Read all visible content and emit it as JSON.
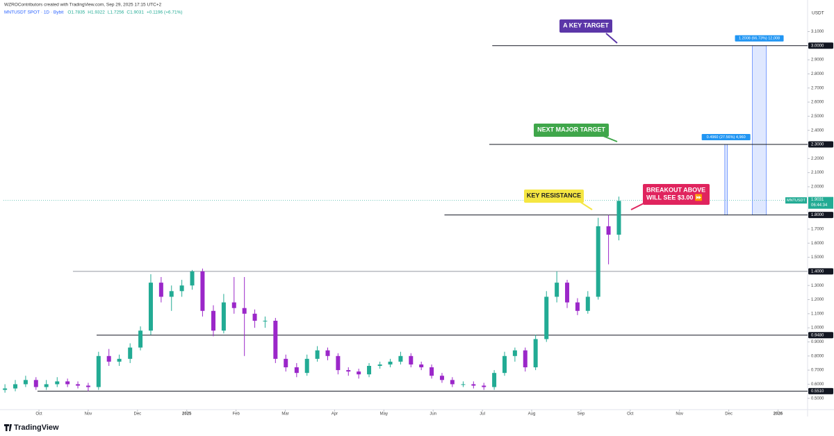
{
  "header": {
    "credit": "WZROContributors created with TradingView.com, Sep 29, 2025 17:15 UTC+2",
    "symbol": "MNTUSDT SPOT · 1D · Bybit",
    "legend_items": [
      "O1.7835",
      "H1.9322",
      "L1.7256",
      "C1.9031",
      "+0.1196 (+6.71%)"
    ],
    "logo": "TradingView"
  },
  "chart_data": {
    "type": "candlestick",
    "axis_unit": "USDT",
    "up_color": "#22ab94",
    "down_color": "#9b27c9",
    "xlim": [
      -0.72,
      15.6
    ],
    "xticks": [
      {
        "value": 0,
        "label": "Oct"
      },
      {
        "value": 1,
        "label": "Nov"
      },
      {
        "value": 2,
        "label": "Dec"
      },
      {
        "value": 3,
        "label": "2025"
      },
      {
        "value": 4,
        "label": "Feb"
      },
      {
        "value": 5,
        "label": "Mar"
      },
      {
        "value": 6,
        "label": "Apr"
      },
      {
        "value": 7,
        "label": "May"
      },
      {
        "value": 8,
        "label": "Jun"
      },
      {
        "value": 9,
        "label": "Jul"
      },
      {
        "value": 10,
        "label": "Aug"
      },
      {
        "value": 11,
        "label": "Sep"
      },
      {
        "value": 12,
        "label": "Oct"
      },
      {
        "value": 13,
        "label": "Nov"
      },
      {
        "value": 14,
        "label": "Dec"
      },
      {
        "value": 15,
        "label": "2026"
      }
    ],
    "ylim": [
      0.42,
      3.25
    ],
    "yticks": [
      {
        "value": 0.5,
        "label": "0.5000"
      },
      {
        "value": 0.6,
        "label": "0.6000"
      },
      {
        "value": 0.7,
        "label": "0.7000"
      },
      {
        "value": 0.8,
        "label": "0.8000"
      },
      {
        "value": 0.9,
        "label": "0.9000"
      },
      {
        "value": 1.0,
        "label": "1.0000"
      },
      {
        "value": 1.1,
        "label": "1.1000"
      },
      {
        "value": 1.2,
        "label": "1.2000"
      },
      {
        "value": 1.3,
        "label": "1.3000"
      },
      {
        "value": 1.5,
        "label": "1.5000"
      },
      {
        "value": 1.6,
        "label": "1.6000"
      },
      {
        "value": 1.7,
        "label": "1.7000"
      },
      {
        "value": 2.0,
        "label": "2.0000"
      },
      {
        "value": 2.1,
        "label": "2.1000"
      },
      {
        "value": 2.2,
        "label": "2.2000"
      },
      {
        "value": 2.4,
        "label": "2.4000"
      },
      {
        "value": 2.5,
        "label": "2.5000"
      },
      {
        "value": 2.6,
        "label": "2.6000"
      },
      {
        "value": 2.7,
        "label": "2.7000"
      },
      {
        "value": 2.8,
        "label": "2.8000"
      },
      {
        "value": 2.9,
        "label": "2.9000"
      },
      {
        "value": 3.1,
        "label": "3.1000"
      }
    ],
    "x": [
      -0.69,
      -0.48,
      -0.27,
      -0.06,
      0.15,
      0.37,
      0.58,
      0.79,
      1.0,
      1.21,
      1.42,
      1.63,
      1.85,
      2.06,
      2.27,
      2.48,
      2.69,
      2.9,
      3.11,
      3.32,
      3.54,
      3.75,
      3.96,
      4.17,
      4.38,
      4.59,
      4.8,
      5.01,
      5.23,
      5.44,
      5.65,
      5.86,
      6.07,
      6.28,
      6.49,
      6.7,
      6.92,
      7.13,
      7.34,
      7.55,
      7.76,
      7.97,
      8.18,
      8.39,
      8.61,
      8.82,
      9.03,
      9.24,
      9.45,
      9.66,
      9.87,
      10.08,
      10.3,
      10.51,
      10.72,
      10.93,
      11.14,
      11.35,
      11.56,
      11.77
    ],
    "open": [
      0.56,
      0.57,
      0.6,
      0.63,
      0.58,
      0.6,
      0.62,
      0.6,
      0.59,
      0.58,
      0.8,
      0.76,
      0.78,
      0.86,
      0.98,
      1.32,
      1.22,
      1.26,
      1.3,
      1.4,
      1.12,
      0.98,
      1.18,
      1.14,
      1.1,
      1.05,
      1.05,
      0.78,
      0.72,
      0.68,
      0.78,
      0.84,
      0.8,
      0.7,
      0.69,
      0.67,
      0.73,
      0.74,
      0.76,
      0.8,
      0.74,
      0.72,
      0.66,
      0.63,
      0.6,
      0.6,
      0.59,
      0.58,
      0.68,
      0.8,
      0.84,
      0.72,
      0.92,
      1.22,
      1.32,
      1.18,
      1.12,
      1.22,
      1.72,
      1.66
    ],
    "high": [
      0.6,
      0.63,
      0.66,
      0.65,
      0.63,
      0.65,
      0.64,
      0.62,
      0.61,
      0.83,
      0.85,
      0.81,
      0.89,
      1.01,
      1.38,
      1.36,
      1.3,
      1.34,
      1.41,
      1.42,
      1.16,
      1.24,
      1.36,
      1.36,
      1.13,
      1.08,
      1.07,
      0.81,
      0.75,
      0.81,
      0.87,
      0.86,
      0.82,
      0.72,
      0.71,
      0.75,
      0.76,
      0.78,
      0.83,
      0.82,
      0.76,
      0.74,
      0.68,
      0.65,
      0.62,
      0.62,
      0.61,
      0.7,
      0.83,
      0.86,
      0.86,
      0.95,
      1.26,
      1.4,
      1.34,
      1.21,
      1.26,
      1.78,
      1.8,
      1.93
    ],
    "low": [
      0.54,
      0.55,
      0.58,
      0.56,
      0.56,
      0.58,
      0.58,
      0.57,
      0.55,
      0.56,
      0.73,
      0.73,
      0.75,
      0.84,
      0.95,
      1.18,
      1.12,
      1.22,
      1.27,
      1.08,
      0.94,
      0.96,
      1.1,
      0.8,
      1.0,
      1.0,
      0.75,
      0.69,
      0.65,
      0.66,
      0.76,
      0.77,
      0.67,
      0.66,
      0.64,
      0.65,
      0.71,
      0.72,
      0.74,
      0.72,
      0.7,
      0.64,
      0.61,
      0.58,
      0.58,
      0.57,
      0.56,
      0.56,
      0.66,
      0.76,
      0.69,
      0.7,
      0.9,
      1.18,
      1.14,
      1.09,
      1.1,
      1.2,
      1.45,
      1.62
    ],
    "close": [
      0.57,
      0.6,
      0.63,
      0.58,
      0.6,
      0.62,
      0.6,
      0.59,
      0.58,
      0.8,
      0.76,
      0.78,
      0.86,
      0.98,
      1.32,
      1.22,
      1.26,
      1.3,
      1.4,
      1.12,
      0.98,
      1.18,
      1.14,
      1.1,
      1.05,
      1.05,
      0.78,
      0.72,
      0.68,
      0.78,
      0.84,
      0.8,
      0.7,
      0.69,
      0.67,
      0.73,
      0.74,
      0.76,
      0.8,
      0.74,
      0.72,
      0.66,
      0.63,
      0.6,
      0.6,
      0.59,
      0.58,
      0.68,
      0.8,
      0.84,
      0.72,
      0.92,
      1.22,
      1.32,
      1.18,
      1.12,
      1.22,
      1.72,
      1.66,
      1.9
    ],
    "levels": [
      {
        "value": 3.0,
        "label": "3.0000",
        "x_start": 9.2
      },
      {
        "value": 2.3,
        "label": "2.3000",
        "x_start": 9.14
      },
      {
        "value": 1.8,
        "label": "1.8000",
        "x_start": 8.23
      },
      {
        "value": 1.4,
        "label": "1.4000",
        "x_start": 0.69
      },
      {
        "value": 0.948,
        "label": "0.9480",
        "x_start": 1.17
      },
      {
        "value": 0.551,
        "label": "0.5510",
        "x_start": -0.03
      }
    ],
    "measures": [
      {
        "from": 1.8,
        "to": 2.3,
        "x_start": 13.92,
        "x_end": 13.97,
        "label": "0.4960 (27.56%) 4,960"
      },
      {
        "from": 1.8,
        "to": 3.0,
        "x_start": 14.48,
        "x_end": 14.76,
        "label": "1.2008 (66.73%) 12,008"
      }
    ],
    "last_price": {
      "symbol": "MNTUSDT",
      "value": 1.9031,
      "countdown": "06:44:34"
    },
    "annotations": [
      {
        "text": [
          "A KEY TARGET"
        ],
        "color": "#5b36a8",
        "text_color": "#ffffff"
      },
      {
        "text": [
          "NEXT MAJOR TARGET"
        ],
        "color": "#3fa64a",
        "text_color": "#ffffff"
      },
      {
        "text": [
          "KEY RESISTANCE"
        ],
        "color": "#f5e642",
        "text_color": "#222222"
      },
      {
        "text": [
          "BREAKOUT ABOVE",
          "WILL SEE $3.00 ⏩"
        ],
        "color": "#e0245e",
        "text_color": "#ffffff"
      }
    ]
  }
}
